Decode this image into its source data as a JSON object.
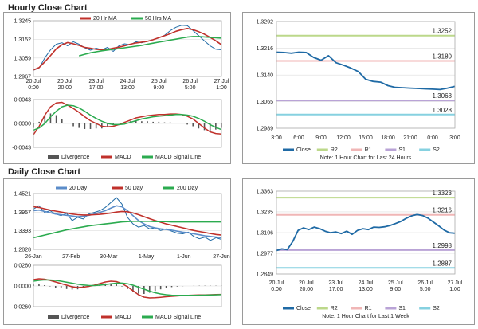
{
  "sections": {
    "hourly": "Hourly Close Chart",
    "daily": "Daily Close Chart"
  },
  "colors": {
    "close": "#1f6aa5",
    "ma20": "#c0312b",
    "ma50": "#2bab4f",
    "macd": "#c0312b",
    "signal": "#2bab4f",
    "r2": "#bcd88a",
    "r1": "#f0b6b6",
    "s1": "#b9a3d6",
    "s2": "#86d1e0",
    "divergence": "#555555",
    "grid": "#dddddd"
  },
  "chart_data": [
    {
      "id": "hourly-price",
      "type": "line",
      "ylim": [
        1.2967,
        1.3245
      ],
      "y_ticks": [
        "1.3245",
        "1.3152",
        "1.3059",
        "1.2967"
      ],
      "x_ticks": [
        "20 Jul\n0:00",
        "20 Jul\n20:00",
        "23 Jul\n17:00",
        "24 Jul\n13:00",
        "25 Jul\n9:00",
        "26 Jul\n5:00",
        "27 Jul\n1:00"
      ],
      "legend": [
        "20 Hr MA",
        "50 Hrs MA"
      ],
      "series": [
        {
          "name": "Close",
          "values": [
            1.2998,
            1.301,
            1.306,
            1.31,
            1.3128,
            1.3135,
            1.312,
            1.314,
            1.3128,
            1.311,
            1.3098,
            1.3108,
            1.31,
            1.3112,
            1.3092,
            1.312,
            1.313,
            1.3125,
            1.314,
            1.3135,
            1.3142,
            1.315,
            1.316,
            1.3172,
            1.3195,
            1.3212,
            1.3222,
            1.322,
            1.3196,
            1.317,
            1.3145,
            1.312,
            1.3103,
            1.31
          ]
        },
        {
          "name": "20 Hr MA",
          "values": [
            1.3,
            1.3012,
            1.304,
            1.3072,
            1.3105,
            1.3125,
            1.3136,
            1.313,
            1.3122,
            1.3112,
            1.3108,
            1.3102,
            1.31,
            1.3102,
            1.3108,
            1.3113,
            1.312,
            1.3128,
            1.3134,
            1.3138,
            1.3142,
            1.315,
            1.316,
            1.317,
            1.318,
            1.3192,
            1.32,
            1.3206,
            1.32,
            1.319,
            1.3178,
            1.3162,
            1.3145,
            1.3125
          ]
        },
        {
          "name": "50 Hrs MA",
          "values": [
            null,
            null,
            null,
            null,
            null,
            null,
            null,
            null,
            1.307,
            1.3078,
            1.3085,
            1.309,
            1.3095,
            1.3099,
            1.3102,
            1.3106,
            1.311,
            1.3114,
            1.3118,
            1.3122,
            1.3128,
            1.3133,
            1.3138,
            1.3143,
            1.3148,
            1.3153,
            1.3158,
            1.3163,
            1.3166,
            1.3166,
            1.3164,
            1.3162,
            1.316,
            1.3158
          ]
        }
      ]
    },
    {
      "id": "hourly-macd",
      "type": "line",
      "ylim": [
        -0.0043,
        0.0043
      ],
      "y_ticks": [
        "0.0043",
        "0.0000",
        "-0.0043"
      ],
      "legend": [
        "Divergence",
        "MACD",
        "MACD Signal Line"
      ],
      "series": [
        {
          "name": "MACD",
          "values": [
            -0.002,
            -0.0005,
            0.0015,
            0.003,
            0.0037,
            0.0038,
            0.0033,
            0.0027,
            0.002,
            0.0012,
            0.0005,
            0.0,
            -0.0005,
            -0.0006,
            -0.0005,
            -0.0002,
            0.0002,
            0.0006,
            0.001,
            0.0012,
            0.0014,
            0.0015,
            0.0016,
            0.0016,
            0.0017,
            0.0017,
            0.0016,
            0.0013,
            0.0008,
            0.0,
            -0.0008,
            -0.0015,
            -0.0018,
            -0.0019
          ]
        },
        {
          "name": "MACD Signal Line",
          "values": [
            -0.0012,
            -0.0008,
            0.0,
            0.0012,
            0.0022,
            0.003,
            0.0033,
            0.0032,
            0.0028,
            0.0022,
            0.0015,
            0.0009,
            0.0004,
            0.0,
            -0.0002,
            -0.0002,
            -0.0001,
            0.0002,
            0.0005,
            0.0008,
            0.001,
            0.0012,
            0.0013,
            0.0014,
            0.0015,
            0.0016,
            0.0016,
            0.0015,
            0.0013,
            0.0009,
            0.0004,
            -0.0002,
            -0.0007,
            -0.0011
          ]
        },
        {
          "name": "Divergence",
          "values": [
            -0.0008,
            0.0003,
            0.0015,
            0.0018,
            0.0015,
            0.0008,
            0.0,
            -0.0005,
            -0.0008,
            -0.001,
            -0.001,
            -0.0009,
            -0.0009,
            -0.0006,
            -0.0003,
            0.0,
            0.0003,
            0.0004,
            0.0005,
            0.0004,
            0.0004,
            0.0003,
            0.0003,
            0.0002,
            0.0002,
            0.0001,
            0.0,
            -0.0002,
            -0.0005,
            -0.0009,
            -0.0012,
            -0.0013,
            -0.0011,
            -0.0008
          ]
        }
      ]
    },
    {
      "id": "hourly-pivot",
      "type": "line",
      "ylim": [
        1.2989,
        1.3292
      ],
      "y_ticks": [
        "1.3292",
        "1.3216",
        "1.3140",
        "1.3065",
        "1.2989"
      ],
      "x_ticks": [
        "3:00",
        "6:00",
        "9:00",
        "12:00",
        "15:00",
        "18:00",
        "21:00",
        "0:00",
        "3:00"
      ],
      "levels": [
        {
          "name": "R2",
          "value": 1.3252,
          "label": "1.3252"
        },
        {
          "name": "R1",
          "value": 1.318,
          "label": "1.3180"
        },
        {
          "name": "S1",
          "value": 1.3068,
          "label": "1.3068"
        },
        {
          "name": "S2",
          "value": 1.3028,
          "label": "1.3028"
        }
      ],
      "legend": [
        "Close",
        "R2",
        "R1",
        "S1",
        "S2"
      ],
      "note": "Note: 1 Hour Chart for Last 24 Hours",
      "series": [
        {
          "name": "Close",
          "values": [
            1.3205,
            1.3204,
            1.3202,
            1.3205,
            1.3204,
            1.319,
            1.3182,
            1.3195,
            1.3175,
            1.3168,
            1.316,
            1.315,
            1.3128,
            1.3122,
            1.312,
            1.311,
            1.3105,
            1.3104,
            1.3103,
            1.3102,
            1.3101,
            1.31,
            1.3099,
            1.3103,
            1.3108
          ]
        }
      ]
    },
    {
      "id": "daily-price",
      "type": "line",
      "ylim": [
        1.2828,
        1.4521
      ],
      "y_ticks": [
        "1.4521",
        "1.3957",
        "1.3393",
        "1.2828"
      ],
      "x_ticks": [
        "26-Jan",
        "27-Feb",
        "30-Mar",
        "1-May",
        "1-Jun",
        "27-Jun"
      ],
      "legend": [
        "20 Day",
        "50 Day",
        "200 Day"
      ],
      "series": [
        {
          "name": "Close",
          "values": [
            1.405,
            1.415,
            1.395,
            1.4,
            1.39,
            1.385,
            1.392,
            1.37,
            1.38,
            1.375,
            1.39,
            1.395,
            1.4,
            1.41,
            1.425,
            1.44,
            1.42,
            1.38,
            1.36,
            1.35,
            1.355,
            1.345,
            1.348,
            1.34,
            1.345,
            1.338,
            1.332,
            1.33,
            1.335,
            1.322,
            1.315,
            1.32,
            1.31,
            1.318,
            1.313
          ]
        },
        {
          "name": "20 Day",
          "values": [
            1.4,
            1.402,
            1.398,
            1.394,
            1.39,
            1.388,
            1.386,
            1.384,
            1.382,
            1.383,
            1.386,
            1.39,
            1.395,
            1.4,
            1.408,
            1.415,
            1.412,
            1.4,
            1.385,
            1.37,
            1.36,
            1.352,
            1.348,
            1.345,
            1.343,
            1.341,
            1.338,
            1.335,
            1.333,
            1.33,
            1.327,
            1.324,
            1.322,
            1.32,
            1.318
          ]
        },
        {
          "name": "50 Day",
          "values": [
            1.412,
            1.41,
            1.406,
            1.402,
            1.399,
            1.396,
            1.393,
            1.39,
            1.388,
            1.387,
            1.387,
            1.388,
            1.389,
            1.391,
            1.393,
            1.396,
            1.398,
            1.397,
            1.393,
            1.388,
            1.382,
            1.376,
            1.37,
            1.365,
            1.36,
            1.356,
            1.352,
            1.348,
            1.344,
            1.34,
            1.337,
            1.334,
            1.331,
            1.328,
            1.326
          ]
        },
        {
          "name": "200 Day",
          "values": [
            1.318,
            1.322,
            1.326,
            1.33,
            1.334,
            1.338,
            1.342,
            1.345,
            1.348,
            1.351,
            1.354,
            1.356,
            1.358,
            1.36,
            1.362,
            1.364,
            1.366,
            1.367,
            1.368,
            1.368,
            1.368,
            1.368,
            1.367,
            1.367,
            1.367,
            1.366,
            1.366,
            1.366,
            1.366,
            1.366,
            1.366,
            1.366,
            1.366,
            1.366,
            1.366
          ]
        }
      ]
    },
    {
      "id": "daily-macd",
      "type": "line",
      "ylim": [
        -0.026,
        0.026
      ],
      "y_ticks": [
        "0.0260",
        "0.0000",
        "-0.0260"
      ],
      "legend": [
        "Divergence",
        "MACD",
        "MACD Signal Line"
      ],
      "series": [
        {
          "name": "MACD",
          "values": [
            0.008,
            0.009,
            0.0085,
            0.007,
            0.005,
            0.003,
            0.001,
            -0.001,
            -0.002,
            -0.0015,
            -0.0005,
            0.001,
            0.003,
            0.005,
            0.006,
            0.0055,
            0.003,
            -0.001,
            -0.006,
            -0.011,
            -0.014,
            -0.015,
            -0.0148,
            -0.0142,
            -0.0135,
            -0.013,
            -0.0125,
            -0.012,
            -0.0118,
            -0.0115,
            -0.0113,
            -0.0112,
            -0.011,
            -0.0108,
            -0.0106
          ]
        },
        {
          "name": "MACD Signal Line",
          "values": [
            0.006,
            0.007,
            0.0076,
            0.0075,
            0.007,
            0.006,
            0.0048,
            0.0035,
            0.0022,
            0.0012,
            0.0006,
            0.0005,
            0.001,
            0.0018,
            0.0028,
            0.0035,
            0.0036,
            0.0028,
            0.001,
            -0.0015,
            -0.004,
            -0.0065,
            -0.0085,
            -0.01,
            -0.011,
            -0.0116,
            -0.0118,
            -0.0118,
            -0.0118,
            -0.0117,
            -0.0116,
            -0.0115,
            -0.0113,
            -0.0111,
            -0.0109
          ]
        },
        {
          "name": "Divergence",
          "values": [
            0.002,
            0.002,
            0.001,
            -0.0005,
            -0.002,
            -0.003,
            -0.0038,
            -0.0045,
            -0.0042,
            -0.0027,
            -0.0011,
            0.0005,
            0.002,
            0.0032,
            0.0032,
            0.002,
            -0.0006,
            -0.0038,
            -0.007,
            -0.0095,
            -0.01,
            -0.0085,
            -0.0063,
            -0.0042,
            -0.0025,
            -0.0014,
            -0.0007,
            -0.0002,
            0.0,
            0.0002,
            0.0003,
            0.0003,
            0.0003,
            0.0003,
            0.0003
          ]
        }
      ]
    },
    {
      "id": "daily-pivot",
      "type": "line",
      "ylim": [
        1.2849,
        1.3363
      ],
      "y_ticks": [
        "1.3363",
        "1.3235",
        "1.3106",
        "1.2977",
        "1.2849"
      ],
      "x_ticks": [
        "20 Jul\n0:00",
        "20 Jul\n20:00",
        "23 Jul\n17:00",
        "24 Jul\n13:00",
        "25 Jul\n9:00",
        "26 Jul\n5:00",
        "27 Jul\n1:00"
      ],
      "levels": [
        {
          "name": "R2",
          "value": 1.3323,
          "label": "1.3323"
        },
        {
          "name": "R1",
          "value": 1.3216,
          "label": "1.3216"
        },
        {
          "name": "S1",
          "value": 1.2998,
          "label": "1.2998"
        },
        {
          "name": "S2",
          "value": 1.2887,
          "label": "1.2887"
        }
      ],
      "legend": [
        "Close",
        "R2",
        "R1",
        "S1",
        "S2"
      ],
      "note": "Note: 1 Hour Chart for Last 1 Week",
      "series": [
        {
          "name": "Close",
          "values": [
            1.2995,
            1.3005,
            1.3,
            1.305,
            1.312,
            1.3135,
            1.3125,
            1.314,
            1.313,
            1.3115,
            1.3105,
            1.311,
            1.31,
            1.3115,
            1.3095,
            1.312,
            1.313,
            1.3125,
            1.314,
            1.3138,
            1.3142,
            1.315,
            1.3162,
            1.3175,
            1.3195,
            1.321,
            1.3218,
            1.3212,
            1.3196,
            1.3172,
            1.3148,
            1.3122,
            1.3105,
            1.3102
          ]
        }
      ]
    }
  ]
}
